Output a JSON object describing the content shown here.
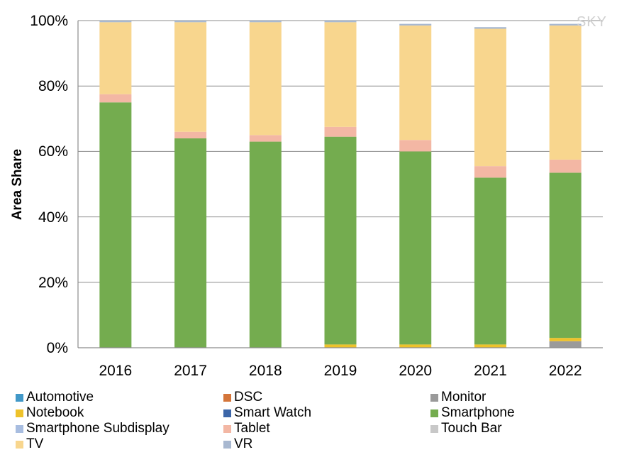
{
  "watermark": "SKY",
  "chart_data": {
    "type": "bar",
    "stacked": true,
    "ylabel": "Area Share",
    "xlabel": "",
    "title": "",
    "ylim": [
      0,
      100
    ],
    "yticks": [
      "0%",
      "20%",
      "40%",
      "60%",
      "80%",
      "100%"
    ],
    "grid": true,
    "legend_position": "bottom",
    "categories": [
      "2016",
      "2017",
      "2018",
      "2019",
      "2020",
      "2021",
      "2022"
    ],
    "series": [
      {
        "name": "Automotive",
        "color": "#4198c8",
        "values": [
          0,
          0,
          0,
          0,
          0,
          0,
          0
        ]
      },
      {
        "name": "DSC",
        "color": "#d4753a",
        "values": [
          0,
          0,
          0,
          0,
          0,
          0,
          0
        ]
      },
      {
        "name": "Monitor",
        "color": "#9a9a9a",
        "values": [
          0,
          0,
          0,
          0,
          0,
          0,
          2
        ]
      },
      {
        "name": "Notebook",
        "color": "#eec22a",
        "values": [
          0,
          0,
          0,
          1,
          1,
          1,
          1
        ]
      },
      {
        "name": "Smart Watch",
        "color": "#3c66a8",
        "values": [
          0,
          0,
          0,
          0,
          0,
          0,
          0
        ]
      },
      {
        "name": "Smartphone",
        "color": "#74ac4f",
        "values": [
          75,
          64,
          63,
          63.5,
          59,
          51,
          50.5
        ]
      },
      {
        "name": "Smartphone Subdisplay",
        "color": "#a8bde0",
        "values": [
          0,
          0,
          0,
          0,
          0,
          0,
          0
        ]
      },
      {
        "name": "Tablet",
        "color": "#f3b7a4",
        "values": [
          2.5,
          2,
          2,
          3,
          3.5,
          3.5,
          4
        ]
      },
      {
        "name": "Touch Bar",
        "color": "#c8c8c8",
        "values": [
          0,
          0,
          0,
          0,
          0,
          0,
          0
        ]
      },
      {
        "name": "TV",
        "color": "#f8d68e",
        "values": [
          22,
          33.5,
          34.5,
          32,
          35,
          42,
          41
        ]
      },
      {
        "name": "VR",
        "color": "#a8b8d0",
        "values": [
          0.5,
          0.5,
          0.5,
          0.5,
          0.5,
          0.5,
          0.5
        ]
      }
    ]
  }
}
